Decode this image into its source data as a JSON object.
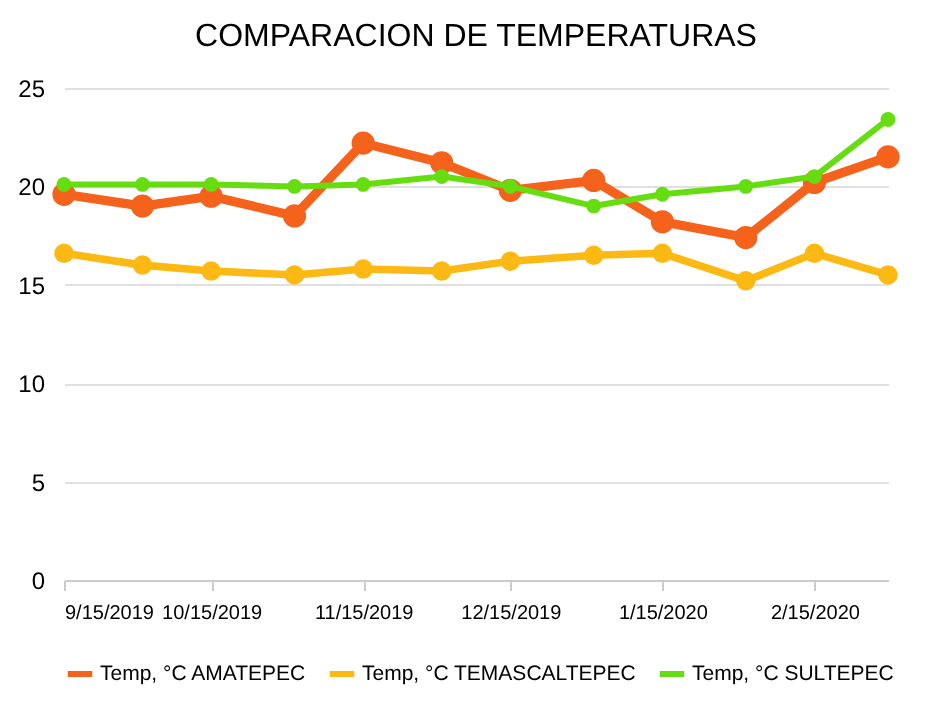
{
  "chart_data": {
    "type": "line",
    "title": "COMPARACION DE TEMPERATURAS",
    "x": [
      "2019-09-15",
      "2019-10-01",
      "2019-10-15",
      "2019-11-01",
      "2019-11-15",
      "2019-12-01",
      "2019-12-15",
      "2020-01-01",
      "2020-01-15",
      "2020-02-01",
      "2020-02-15",
      "2020-03-01"
    ],
    "series": [
      {
        "name": "Temp, °C AMATEPEC",
        "color": "#f4621c",
        "values": [
          19.6,
          19.0,
          19.5,
          18.5,
          22.2,
          21.2,
          19.8,
          20.3,
          18.2,
          17.4,
          20.2,
          21.5
        ]
      },
      {
        "name": "Temp, °C TEMASCALTEPEC",
        "color": "#fdb913",
        "values": [
          16.6,
          16.0,
          15.7,
          15.5,
          15.8,
          15.7,
          16.2,
          16.5,
          16.6,
          15.2,
          16.6,
          15.5
        ]
      },
      {
        "name": "Temp, °C SULTEPEC",
        "color": "#66dd11",
        "values": [
          20.1,
          20.1,
          20.1,
          20.0,
          20.1,
          20.5,
          20.0,
          19.0,
          19.6,
          20.0,
          20.5,
          23.4
        ]
      }
    ],
    "xlim": [
      "2019-09-15",
      "2020-03-01"
    ],
    "xticks": [
      {
        "value": "2019-09-15",
        "label": "9/15/2019"
      },
      {
        "value": "2019-10-15",
        "label": "10/15/2019"
      },
      {
        "value": "2019-11-15",
        "label": "11/15/2019"
      },
      {
        "value": "2019-12-15",
        "label": "12/15/2019"
      },
      {
        "value": "2020-01-15",
        "label": "1/15/2020"
      },
      {
        "value": "2020-02-15",
        "label": "2/15/2020"
      }
    ],
    "ylim": [
      0,
      25
    ],
    "yticks": [
      0,
      5,
      10,
      15,
      20,
      25
    ],
    "grid": "y",
    "legend": "bottom",
    "marker": "circle",
    "line_style": "solid"
  }
}
